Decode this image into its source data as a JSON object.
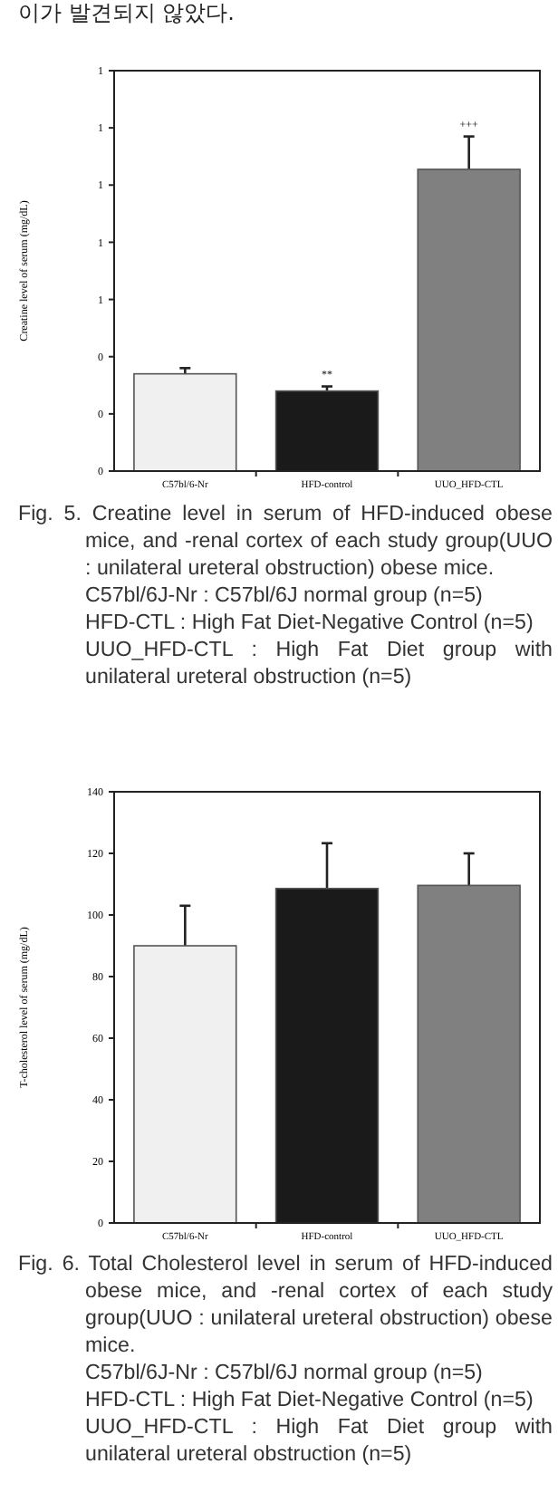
{
  "chart_data": [
    {
      "type": "bar",
      "ylabel": "Creatine level of serum (mg/dL)",
      "categories": [
        "C57bl/6-Nr",
        "HFD-control",
        "UUO_HFD-CTL"
      ],
      "values": [
        0.34,
        0.28,
        1.055
      ],
      "colors": [
        "#f0f0f0",
        "#1a1a1a",
        "#808080"
      ],
      "errors": [
        [
          0.34,
          0.36
        ],
        [
          0.28,
          0.296
        ],
        [
          1.055,
          1.17
        ]
      ],
      "ylim": [
        0,
        1.4
      ],
      "yticks": [
        0,
        {
          "value": 0.2,
          "label": "0"
        },
        {
          "value": 0.4,
          "label": "0"
        },
        {
          "value": 0.6,
          "label": "1"
        },
        {
          "value": 0.8,
          "label": "1"
        },
        1,
        {
          "value": 1.2,
          "label": "1"
        },
        {
          "value": 1.4,
          "label": "1"
        }
      ],
      "grid": false,
      "annotations": [
        "이가 발견되지 않았다.",
        {
          "text": "**",
          "x": "HFD-control",
          "y": 0.296
        },
        {
          "text": "+++",
          "x": "UUO_HFD-CTL",
          "y": 1.17
        },
        "Fig. 5. Creatine level in serum of HFD-induced obese mice, and -renal cortex of each study group(UUO : unilateral ureteral obstruction) obese mice.",
        "C57bl/6J-Nr : C57bl/6J normal group (n=5)",
        "HFD-CTL : High Fat Diet-Negative Control (n=5)",
        "UUO_HFD-CTL : High Fat Diet group with unilateral ureteral obstruction (n=5)"
      ]
    },
    {
      "type": "bar",
      "ylabel": "T-cholesterol level of serum (mg/dL)",
      "categories": [
        "C57bl/6-Nr",
        "HFD-control",
        "UUO_HFD-CTL"
      ],
      "values": [
        90,
        108.6,
        109.6
      ],
      "colors": [
        "#f0f0f0",
        "#1a1a1a",
        "#808080"
      ],
      "errors": [
        [
          90,
          103
        ],
        [
          108.6,
          123.3
        ],
        [
          109.6,
          120
        ]
      ],
      "ylim": [
        0,
        140
      ],
      "yticks": [
        0,
        20,
        40,
        60,
        80,
        100,
        120,
        140
      ],
      "grid": false,
      "annotations": [
        "Fig. 6. Total Cholesterol level in serum of HFD-induced obese mice, and -renal cortex of each study group(UUO : unilateral ureteral obstruction) obese mice.",
        "C57bl/6J-Nr : C57bl/6J normal group (n=5)",
        "HFD-CTL : High Fat Diet-Negative Control (n=5)",
        "UUO_HFD-CTL : High Fat Diet group with unilateral ureteral obstruction (n=5)"
      ]
    }
  ]
}
